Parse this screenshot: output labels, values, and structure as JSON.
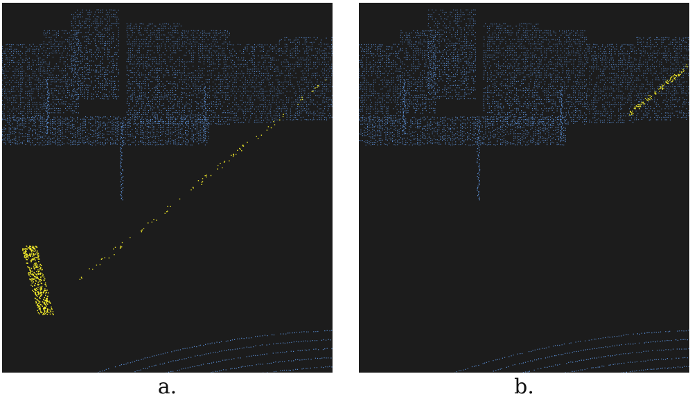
{
  "colors": {
    "background": "#1c1c1c",
    "points": "#5b8fd6",
    "highlight": "#f2ea2a",
    "caption": "#111111"
  },
  "panels": [
    {
      "caption": "a.",
      "highlight": "pedestrian-and-diagonal-curb"
    },
    {
      "caption": "b.",
      "highlight": "diagonal-road-edge"
    }
  ]
}
